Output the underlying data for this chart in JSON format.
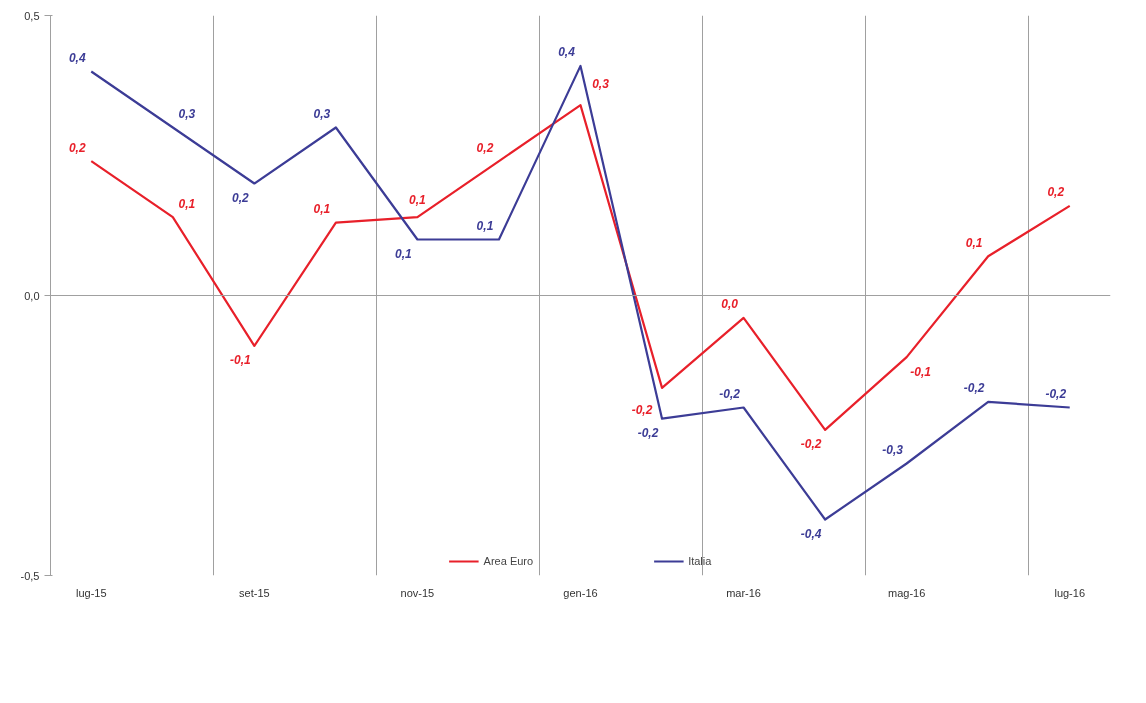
{
  "chart_data": {
    "type": "line",
    "categories": [
      "lug-15",
      null,
      "set-15",
      null,
      "nov-15",
      null,
      "gen-16",
      null,
      "mar-16",
      null,
      "mag-16",
      null,
      "lug-16"
    ],
    "series": [
      {
        "name": "Area Euro",
        "color": "#e8202a",
        "values": [
          0.24,
          0.14,
          -0.09,
          0.13,
          0.14,
          0.24,
          0.34,
          -0.165,
          -0.04,
          -0.24,
          -0.11,
          0.07,
          0.16
        ],
        "value_labels": [
          "0,2",
          "0,1",
          "-0,1",
          "0,1",
          "0,1",
          "0,2",
          "0,3",
          "-0,2",
          "0,0",
          "-0,2",
          "-0,1",
          "0,1",
          "0,2"
        ]
      },
      {
        "name": "Italia",
        "color": "#3c3c96",
        "values": [
          0.4,
          0.3,
          0.2,
          0.3,
          0.1,
          0.1,
          0.41,
          -0.22,
          -0.2,
          -0.4,
          -0.3,
          -0.19,
          -0.2
        ],
        "value_labels": [
          "0,4",
          "0,3",
          "0,2",
          "0,3",
          "0,1",
          "0,1",
          "0,4",
          "-0,2",
          "-0,2",
          "-0,4",
          "-0,3",
          "-0,2",
          "-0,2"
        ]
      }
    ],
    "ylim": [
      -0.5,
      0.5
    ],
    "yticks": [
      {
        "value": -0.5,
        "label": "-0,5"
      },
      {
        "value": 0,
        "label": "0,0"
      },
      {
        "value": 0.5,
        "label": "0,5"
      }
    ],
    "ref_lines": [
      {
        "axis": "y",
        "value": 0,
        "color": "#a0a0a0"
      }
    ],
    "grid": "x",
    "legend": "bottom",
    "line_style": "solid",
    "marker": "none"
  }
}
